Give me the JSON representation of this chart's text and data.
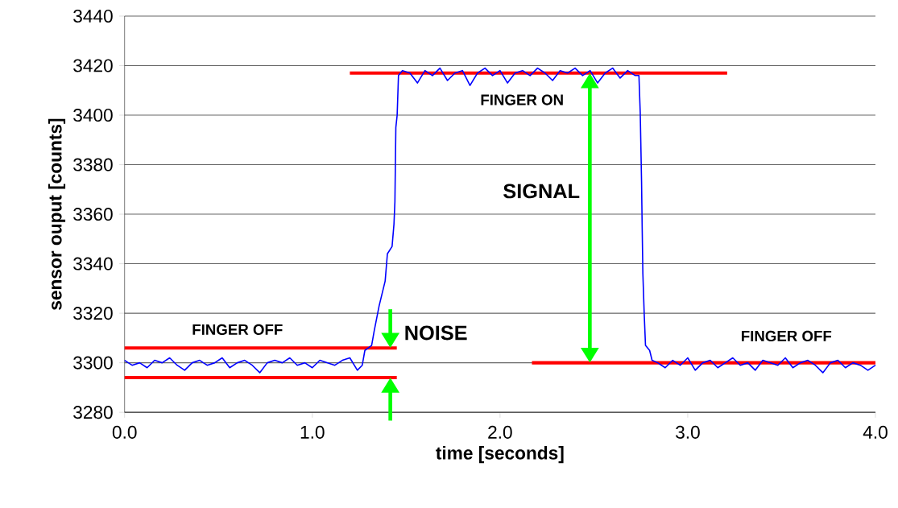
{
  "chart_data": {
    "type": "line",
    "xlabel": "time [seconds]",
    "ylabel": "sensor ouput [counts]",
    "xlim": [
      0,
      4
    ],
    "ylim": [
      3280,
      3440
    ],
    "xticks": [
      {
        "value": 0,
        "label": "0.0"
      },
      {
        "value": 1,
        "label": "1.0"
      },
      {
        "value": 2,
        "label": "2.0"
      },
      {
        "value": 3,
        "label": "3.0"
      },
      {
        "value": 4,
        "label": "4.0"
      }
    ],
    "yticks": [
      3280,
      3300,
      3320,
      3340,
      3360,
      3380,
      3400,
      3420,
      3440
    ],
    "grid": "y",
    "series": [
      {
        "color": "#ff0000",
        "x": [
          0,
          1.45
        ],
        "values": [
          3306,
          3306
        ]
      },
      {
        "color": "#ff0000",
        "x": [
          0,
          1.45
        ],
        "values": [
          3294,
          3294
        ]
      },
      {
        "color": "#ff0000",
        "x": [
          1.2,
          3.21
        ],
        "values": [
          3417,
          3417
        ]
      },
      {
        "color": "#ff0000",
        "x": [
          2.17,
          4.0
        ],
        "values": [
          3300,
          3300
        ]
      },
      {
        "color": "#0000ff",
        "x": [
          0,
          0.04,
          0.08,
          0.12,
          0.16,
          0.2,
          0.24,
          0.28,
          0.32,
          0.36,
          0.4,
          0.44,
          0.48,
          0.52,
          0.56,
          0.6,
          0.64,
          0.68,
          0.72,
          0.76,
          0.8,
          0.84,
          0.88,
          0.92,
          0.96,
          1.0,
          1.04,
          1.08,
          1.12,
          1.16,
          1.2,
          1.24,
          1.266,
          1.28,
          1.316,
          1.33,
          1.356,
          1.388,
          1.4,
          1.425,
          1.435,
          1.44,
          1.445,
          1.452,
          1.459,
          1.48,
          1.52,
          1.56,
          1.6,
          1.64,
          1.68,
          1.72,
          1.76,
          1.8,
          1.84,
          1.88,
          1.92,
          1.96,
          2.0,
          2.04,
          2.08,
          2.12,
          2.16,
          2.2,
          2.24,
          2.28,
          2.32,
          2.36,
          2.4,
          2.44,
          2.48,
          2.52,
          2.56,
          2.6,
          2.64,
          2.68,
          2.72,
          2.74,
          2.747,
          2.754,
          2.757,
          2.761,
          2.768,
          2.775,
          2.797,
          2.81,
          2.84,
          2.88,
          2.92,
          2.96,
          3.0,
          3.04,
          3.08,
          3.12,
          3.16,
          3.2,
          3.24,
          3.28,
          3.32,
          3.36,
          3.4,
          3.44,
          3.48,
          3.52,
          3.56,
          3.6,
          3.64,
          3.68,
          3.72,
          3.76,
          3.8,
          3.84,
          3.88,
          3.92,
          3.96,
          4.0
        ],
        "values": [
          3301,
          3299,
          3300,
          3298,
          3301,
          3300,
          3302,
          3299,
          3297,
          3300,
          3301,
          3299,
          3300,
          3302,
          3298,
          3300,
          3301,
          3299,
          3296,
          3300,
          3301,
          3300,
          3302,
          3299,
          3300,
          3298,
          3301,
          3300,
          3299,
          3301,
          3302,
          3297,
          3299,
          3305,
          3307,
          3313,
          3323,
          3333,
          3344,
          3347,
          3356,
          3365,
          3395,
          3400,
          3416,
          3418,
          3417,
          3413,
          3418,
          3416,
          3419,
          3414,
          3417,
          3418,
          3412,
          3417,
          3419,
          3416,
          3418,
          3413,
          3417,
          3418,
          3416,
          3419,
          3417,
          3414,
          3418,
          3417,
          3419,
          3416,
          3418,
          3413,
          3417,
          3419,
          3415,
          3418,
          3416,
          3416,
          3401,
          3373,
          3356,
          3336,
          3320,
          3307,
          3305,
          3301,
          3300,
          3298,
          3301,
          3299,
          3302,
          3297,
          3300,
          3301,
          3298,
          3300,
          3302,
          3299,
          3300,
          3297,
          3301,
          3300,
          3299,
          3302,
          3298,
          3300,
          3301,
          3299,
          3296,
          3300,
          3301,
          3298,
          3300,
          3299,
          3297,
          3299
        ]
      }
    ],
    "annotations": [
      "FINGER OFF",
      "NOISE",
      "FINGER ON",
      "SIGNAL",
      "FINGER OFF"
    ]
  }
}
